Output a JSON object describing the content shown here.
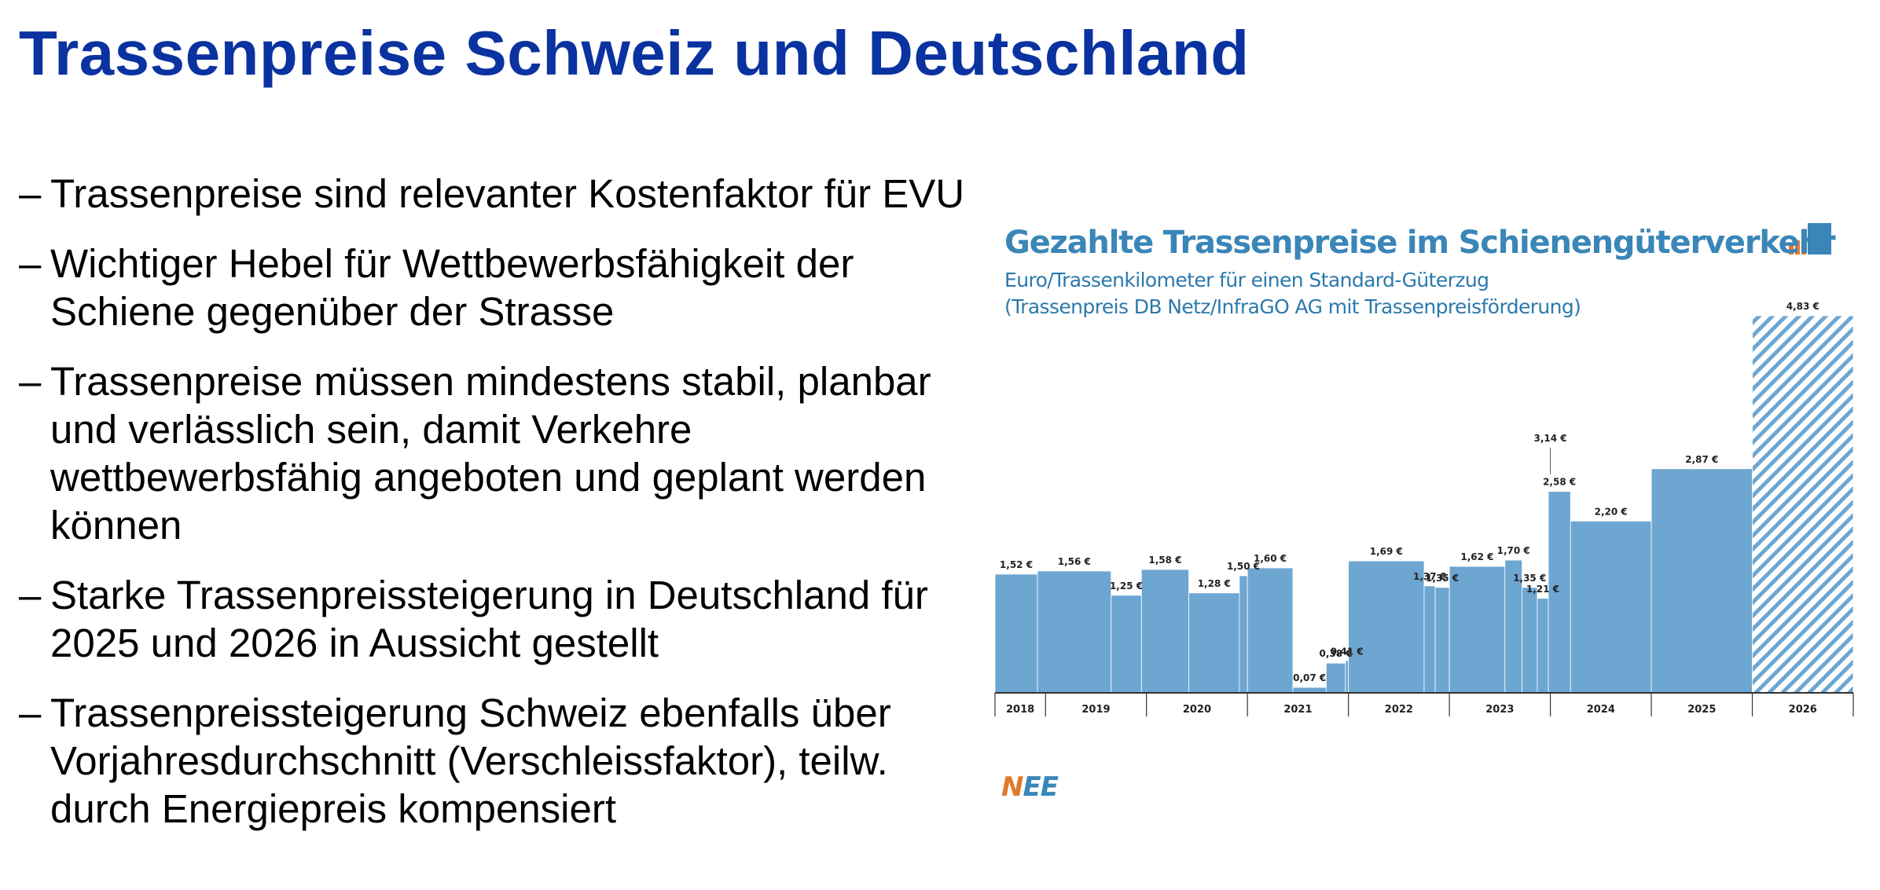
{
  "slide": {
    "title": "Trassenpreise Schweiz und Deutschland",
    "title_color": "#0a32a0",
    "bullet_marker": "–",
    "bullets": [
      "Trassenpreise sind relevanter Kostenfaktor für EVU",
      "Wichtiger Hebel für Wettbewerbsfähigkeit der Schiene gegenüber der Strasse",
      "Trassenpreise müssen mindestens stabil, planbar und verlässlich sein, damit Verkehre wettbewerbsfähig angeboten und geplant werden können",
      "Starke Trassenpreissteigerung in Deutschland für 2025 und 2026 in Aussicht gestellt",
      "Trassenpreissteigerung Schweiz ebenfalls über Vorjahresdurchschnitt (Verschleissfaktor), teilw. durch Energiepreis kompensiert"
    ]
  },
  "chart_data": {
    "type": "bar",
    "title": "Gezahlte Trassenpreise im Schienengüterverkehr",
    "subtitle": "Euro/Trassenkilometer für einen Standard-Güterzug",
    "subtitle2": "(Trassenpreis DB Netz/InfraGO AG mit Trassenpreisförderung)",
    "unit": "€",
    "bar_color": "#6ea6d2",
    "forecast_color": "#6ea6d2",
    "x_start": 2018.5,
    "years": [
      "2018",
      "2019",
      "2020",
      "2021",
      "2022",
      "2023",
      "2024",
      "2025",
      "2026"
    ],
    "periods": [
      {
        "start": 2018.5,
        "end": 2018.92,
        "value": 1.52,
        "label": "1,52 €"
      },
      {
        "start": 2018.92,
        "end": 2019.65,
        "value": 1.56,
        "label": "1,56 €"
      },
      {
        "start": 2019.65,
        "end": 2019.95,
        "value": 1.25,
        "label": "1,25 €"
      },
      {
        "start": 2019.95,
        "end": 2020.42,
        "value": 1.58,
        "label": "1,58 €"
      },
      {
        "start": 2020.42,
        "end": 2020.92,
        "value": 1.28,
        "label": "1,28 €"
      },
      {
        "start": 2020.92,
        "end": 2021.0,
        "value": 1.5,
        "label": "1,50 €"
      },
      {
        "start": 2021.0,
        "end": 2021.45,
        "value": 1.6,
        "label": "1,60 €"
      },
      {
        "start": 2021.45,
        "end": 2021.78,
        "value": 0.07,
        "label": "0,07 €"
      },
      {
        "start": 2021.78,
        "end": 2021.97,
        "value": 0.38,
        "label": "0,38 €"
      },
      {
        "start": 2021.97,
        "end": 2022.0,
        "value": 0.41,
        "label": "0,41 €"
      },
      {
        "start": 2022.0,
        "end": 2022.75,
        "value": 1.69,
        "label": "1,69 €"
      },
      {
        "start": 2022.75,
        "end": 2022.86,
        "value": 1.37,
        "label": "1,37 €"
      },
      {
        "start": 2022.86,
        "end": 2023.0,
        "value": 1.35,
        "label": "1,35 €"
      },
      {
        "start": 2023.0,
        "end": 2023.55,
        "value": 1.62,
        "label": "1,62 €"
      },
      {
        "start": 2023.55,
        "end": 2023.72,
        "value": 1.7,
        "label": "1,70 €"
      },
      {
        "start": 2023.72,
        "end": 2023.87,
        "value": 1.35,
        "label": "1,35 €"
      },
      {
        "start": 2023.87,
        "end": 2023.98,
        "value": 1.21,
        "label": "1,21 €"
      },
      {
        "start": 2023.98,
        "end": 2024.2,
        "value": 2.58,
        "label": "2,58 €"
      },
      {
        "start": 2024.2,
        "end": 2025.0,
        "value": 2.2,
        "label": "2,20 €"
      },
      {
        "start": 2025.0,
        "end": 2026.0,
        "value": 2.87,
        "label": "2,87 €"
      },
      {
        "start": 2026.0,
        "end": 2027.0,
        "value": 4.83,
        "label": "4,83 €",
        "forecast": true
      }
    ],
    "annotations": [
      {
        "x": 2024.0,
        "value": 3.14,
        "label": "3,14 €"
      }
    ],
    "ylim": [
      0,
      4.83
    ],
    "xlim": [
      2018.5,
      2027.0
    ],
    "grid": false,
    "legend": "none"
  },
  "branding": {
    "logo_first": "N",
    "logo_rest": "EE",
    "logo_accent_color": "#e07a2e",
    "corner_mark_colors": [
      "#3a86b8",
      "#e07a2e"
    ]
  }
}
